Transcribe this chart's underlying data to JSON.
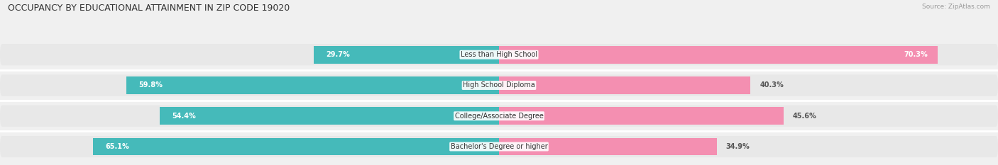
{
  "title": "OCCUPANCY BY EDUCATIONAL ATTAINMENT IN ZIP CODE 19020",
  "source": "Source: ZipAtlas.com",
  "categories": [
    "Less than High School",
    "High School Diploma",
    "College/Associate Degree",
    "Bachelor's Degree or higher"
  ],
  "owner_pct": [
    29.7,
    59.8,
    54.4,
    65.1
  ],
  "renter_pct": [
    70.3,
    40.3,
    45.6,
    34.9
  ],
  "owner_color": "#45BABA",
  "renter_color": "#F48FB1",
  "bg_color": "#f0f0f0",
  "bar_bg_color": "#e0e0e0",
  "row_bg_color": "#e8e8e8",
  "xlim_left": -80.0,
  "xlim_right": 80.0,
  "title_fontsize": 9,
  "label_fontsize": 7,
  "pct_fontsize": 7,
  "tick_fontsize": 7,
  "source_fontsize": 6.5
}
